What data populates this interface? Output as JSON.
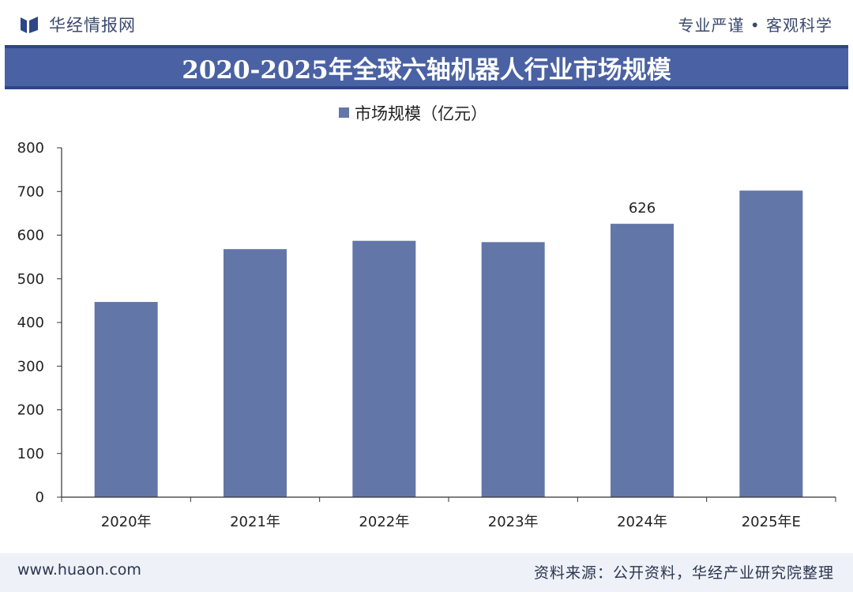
{
  "header": {
    "brand_name": "华经情报网",
    "slogan": "专业严谨 • 客观科学"
  },
  "title": "2020-2025年全球六轴机器人行业市场规模",
  "footer": {
    "url": "www.huaon.com",
    "source": "资料来源：公开资料，华经产业研究院整理"
  },
  "colors": {
    "bar": "#6376a8",
    "title_band": "#4a62a3",
    "brand": "#2e4687"
  },
  "chart_data": {
    "type": "bar",
    "categories": [
      "2020年",
      "2021年",
      "2022年",
      "2023年",
      "2024年",
      "2025年E"
    ],
    "series": [
      {
        "name": "市场规模（亿元）",
        "values": [
          447,
          568,
          587,
          584,
          626,
          702
        ]
      }
    ],
    "data_labels": [
      null,
      null,
      null,
      null,
      "626",
      null
    ],
    "ylim": [
      0,
      800
    ],
    "yticks": [
      "0",
      "100",
      "200",
      "300",
      "400",
      "500",
      "600",
      "700",
      "800"
    ],
    "ytick_values": [
      0,
      100,
      200,
      300,
      400,
      500,
      600,
      700,
      800
    ],
    "legend_position": "top-center",
    "grid": false
  }
}
